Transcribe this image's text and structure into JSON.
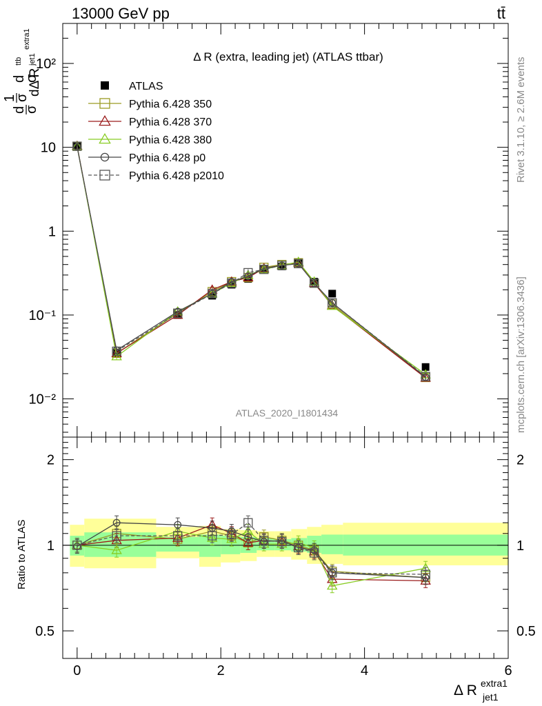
{
  "header": {
    "energy_label": "13000 GeV pp",
    "process_label": "tt̄"
  },
  "side_labels": {
    "rivet": "Rivet 3.1.10, ≥ 2.6M events",
    "mcplots": "mcplots.cern.ch [arXiv:1306.3436]"
  },
  "chart_data": [
    {
      "type": "line",
      "scale": "log",
      "title": "Δ R (extra, leading jet) (ATLAS ttbar)",
      "ylabel": "1/σ dσ^ttb / dΔ R^extra1_jet1",
      "watermark": "ATLAS_2020_I1801434",
      "xlim": [
        -0.2,
        6.0
      ],
      "ylim": [
        0.0035,
        300
      ],
      "y_ticks": [
        {
          "value": 0.01,
          "label": "10⁻²"
        },
        {
          "value": 0.1,
          "label": "10⁻¹"
        },
        {
          "value": 1,
          "label": "1"
        },
        {
          "value": 10,
          "label": "10"
        },
        {
          "value": 100,
          "label": "10²"
        }
      ],
      "x": [
        0.0,
        0.55,
        1.4,
        1.88,
        2.15,
        2.38,
        2.6,
        2.85,
        3.08,
        3.3,
        3.55,
        4.85
      ],
      "series": [
        {
          "name": "ATLAS",
          "color": "#000000",
          "marker": "filled-square",
          "values": [
            10.3,
            0.035,
            0.1,
            0.17,
            0.23,
            0.27,
            0.35,
            0.38,
            0.42,
            0.25,
            0.18,
            0.024
          ]
        },
        {
          "name": "Pythia 6.428 350",
          "color": "#9a9a22",
          "marker": "open-square",
          "values": [
            10.3,
            0.035,
            0.105,
            0.19,
            0.25,
            0.28,
            0.37,
            0.4,
            0.42,
            0.24,
            0.135,
            0.018
          ]
        },
        {
          "name": "Pythia 6.428 370",
          "color": "#9a1a1a",
          "marker": "open-triangle",
          "values": [
            10.4,
            0.035,
            0.1,
            0.2,
            0.25,
            0.28,
            0.36,
            0.39,
            0.42,
            0.24,
            0.13,
            0.0178
          ]
        },
        {
          "name": "Pythia 6.428 380",
          "color": "#88cc22",
          "marker": "open-triangle",
          "values": [
            10.3,
            0.032,
            0.11,
            0.18,
            0.24,
            0.3,
            0.35,
            0.39,
            0.43,
            0.25,
            0.128,
            0.0195
          ]
        },
        {
          "name": "Pythia 6.428 p0",
          "color": "#444444",
          "marker": "open-circle",
          "values": [
            10.2,
            0.038,
            0.11,
            0.18,
            0.25,
            0.29,
            0.36,
            0.39,
            0.41,
            0.24,
            0.14,
            0.0182
          ]
        },
        {
          "name": "Pythia 6.428 p2010",
          "color": "#555555",
          "marker": "open-square",
          "dashed": true,
          "values": [
            10.3,
            0.037,
            0.105,
            0.18,
            0.24,
            0.32,
            0.35,
            0.39,
            0.41,
            0.24,
            0.14,
            0.0185
          ]
        }
      ]
    },
    {
      "type": "line",
      "scale": "log",
      "ylabel": "Ratio to ATLAS",
      "xlabel": "Δ R^extra1_jet1",
      "xlim": [
        -0.2,
        6.0
      ],
      "ylim": [
        0.4,
        2.4
      ],
      "x_ticks": [
        0,
        2,
        4,
        6
      ],
      "y_ticks": [
        {
          "value": 0.5,
          "label": "0.5"
        },
        {
          "value": 1,
          "label": "1"
        },
        {
          "value": 2,
          "label": "2"
        }
      ],
      "bands": [
        {
          "x": [
            -0.1,
            0.1
          ],
          "green": [
            0.92,
            1.08
          ],
          "yellow": [
            0.84,
            1.18
          ]
        },
        {
          "x": [
            0.1,
            1.1
          ],
          "green": [
            0.91,
            1.11
          ],
          "yellow": [
            0.83,
            1.24
          ]
        },
        {
          "x": [
            1.1,
            1.7
          ],
          "green": [
            0.95,
            1.07
          ],
          "yellow": [
            0.9,
            1.16
          ]
        },
        {
          "x": [
            1.7,
            2.0
          ],
          "green": [
            0.91,
            1.09
          ],
          "yellow": [
            0.84,
            1.17
          ]
        },
        {
          "x": [
            2.0,
            2.27
          ],
          "green": [
            0.93,
            1.08
          ],
          "yellow": [
            0.87,
            1.14
          ]
        },
        {
          "x": [
            2.27,
            2.5
          ],
          "green": [
            0.94,
            1.07
          ],
          "yellow": [
            0.88,
            1.13
          ]
        },
        {
          "x": [
            2.5,
            2.75
          ],
          "green": [
            0.96,
            1.06
          ],
          "yellow": [
            0.91,
            1.12
          ]
        },
        {
          "x": [
            2.75,
            2.98
          ],
          "green": [
            0.96,
            1.05
          ],
          "yellow": [
            0.91,
            1.12
          ]
        },
        {
          "x": [
            2.98,
            3.2
          ],
          "green": [
            0.95,
            1.06
          ],
          "yellow": [
            0.89,
            1.14
          ]
        },
        {
          "x": [
            3.2,
            3.4
          ],
          "green": [
            0.94,
            1.08
          ],
          "yellow": [
            0.86,
            1.16
          ]
        },
        {
          "x": [
            3.4,
            3.7
          ],
          "green": [
            0.93,
            1.09
          ],
          "yellow": [
            0.86,
            1.18
          ]
        },
        {
          "x": [
            3.7,
            6.0
          ],
          "green": [
            0.92,
            1.09
          ],
          "yellow": [
            0.85,
            1.2
          ]
        }
      ],
      "x": [
        0.0,
        0.55,
        1.4,
        1.88,
        2.15,
        2.38,
        2.6,
        2.85,
        3.08,
        3.3,
        3.55,
        4.85
      ],
      "series": [
        {
          "name": "Pythia 6.428 350",
          "color": "#9a9a22",
          "marker": "open-square",
          "values": [
            1.0,
            1.1,
            1.05,
            1.12,
            1.08,
            1.02,
            1.07,
            1.04,
            1.0,
            0.96,
            0.81,
            0.77
          ]
        },
        {
          "name": "Pythia 6.428 370",
          "color": "#9a1a1a",
          "marker": "open-triangle",
          "values": [
            1.0,
            1.04,
            1.06,
            1.18,
            1.1,
            1.02,
            1.04,
            1.03,
            0.99,
            0.95,
            0.76,
            0.75
          ]
        },
        {
          "name": "Pythia 6.428 380",
          "color": "#88cc22",
          "marker": "open-triangle",
          "values": [
            1.0,
            0.96,
            1.12,
            1.06,
            1.05,
            1.12,
            1.01,
            1.01,
            1.02,
            0.98,
            0.72,
            0.83
          ]
        },
        {
          "name": "Pythia 6.428 p0",
          "color": "#444444",
          "marker": "open-circle",
          "values": [
            0.99,
            1.2,
            1.18,
            1.15,
            1.12,
            1.07,
            1.03,
            1.04,
            0.98,
            0.96,
            0.8,
            0.77
          ]
        },
        {
          "name": "Pythia 6.428 p2010",
          "color": "#555555",
          "marker": "open-square",
          "dashed": true,
          "values": [
            1.0,
            1.08,
            1.08,
            1.08,
            1.09,
            1.2,
            1.04,
            1.03,
            0.98,
            0.94,
            0.8,
            0.79
          ]
        }
      ]
    }
  ]
}
